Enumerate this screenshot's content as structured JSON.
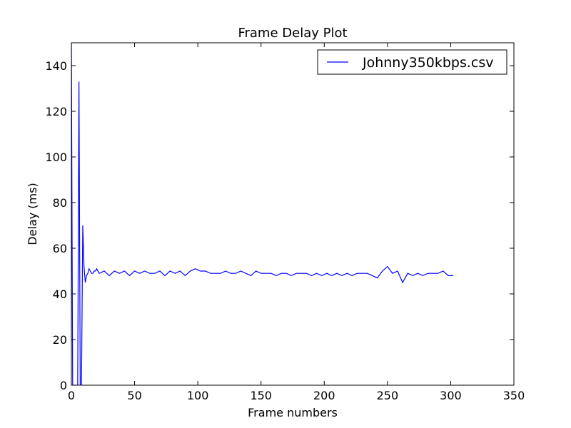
{
  "chart_data": {
    "type": "line",
    "title": "Frame Delay Plot",
    "x_label": "Frame numbers",
    "y_label": "Delay (ms)",
    "x": [
      0,
      1,
      2,
      3,
      4,
      5,
      6,
      7,
      8,
      9,
      10,
      11,
      12,
      13,
      14,
      15,
      16,
      17,
      18,
      19,
      20,
      22,
      26,
      30,
      34,
      38,
      42,
      46,
      50,
      54,
      58,
      62,
      66,
      70,
      74,
      78,
      82,
      86,
      90,
      94,
      98,
      102,
      106,
      110,
      114,
      118,
      122,
      126,
      130,
      134,
      138,
      142,
      146,
      150,
      154,
      158,
      162,
      166,
      170,
      174,
      178,
      182,
      186,
      190,
      194,
      198,
      202,
      206,
      210,
      214,
      218,
      222,
      226,
      230,
      234,
      238,
      242,
      246,
      250,
      254,
      258,
      262,
      266,
      270,
      274,
      278,
      282,
      286,
      290,
      294,
      298,
      302
    ],
    "series": [
      {
        "name": "Johnny350kbps.csv",
        "color": "#0000ff",
        "values": [
          150,
          0,
          0,
          0,
          0,
          0,
          133,
          0,
          0,
          70,
          52,
          45,
          48,
          49,
          51,
          50,
          49,
          49,
          50,
          50,
          51,
          49,
          50,
          48,
          50,
          49,
          50,
          48,
          50,
          49,
          50,
          49,
          49,
          50,
          48,
          50,
          49,
          50,
          48,
          50,
          51,
          50,
          50,
          49,
          49,
          49,
          50,
          49,
          49,
          50,
          49,
          48,
          50,
          49,
          49,
          49,
          48,
          49,
          49,
          48,
          49,
          49,
          49,
          48,
          49,
          48,
          49,
          48,
          49,
          48,
          49,
          48,
          49,
          49,
          49,
          48,
          47,
          50,
          52,
          49,
          50,
          45,
          49,
          48,
          49,
          48,
          49,
          49,
          49,
          50,
          48,
          48
        ]
      }
    ],
    "xlim": [
      0,
      350
    ],
    "ylim": [
      0,
      150
    ],
    "xticks": [
      0,
      50,
      100,
      150,
      200,
      250,
      300,
      350
    ],
    "yticks": [
      0,
      20,
      40,
      60,
      80,
      100,
      120,
      140
    ],
    "legend": "upper right"
  }
}
